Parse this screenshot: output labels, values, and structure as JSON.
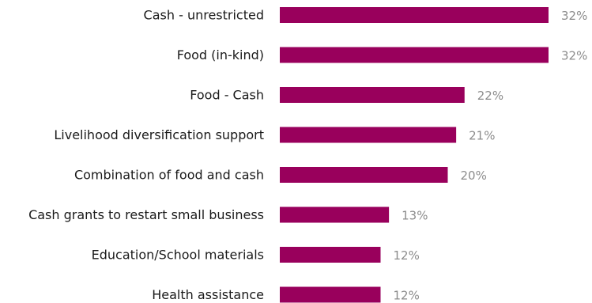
{
  "chart_data": {
    "type": "bar",
    "orientation": "horizontal",
    "categories": [
      "Cash - unrestricted",
      "Food (in-kind)",
      "Food - Cash",
      "Livelihood diversification support",
      "Combination of food and cash",
      "Cash grants to restart small business",
      "Education/School materials",
      "Health assistance"
    ],
    "values": [
      32,
      32,
      22,
      21,
      20,
      13,
      12,
      12
    ],
    "value_labels": [
      "32%",
      "32%",
      "22%",
      "21%",
      "20%",
      "13%",
      "12%",
      "12%"
    ],
    "bar_color": "#99005c",
    "value_label_color": "#8c8c8c",
    "title": "",
    "xlabel": "",
    "ylabel": "",
    "grid": false,
    "legend": "none"
  }
}
